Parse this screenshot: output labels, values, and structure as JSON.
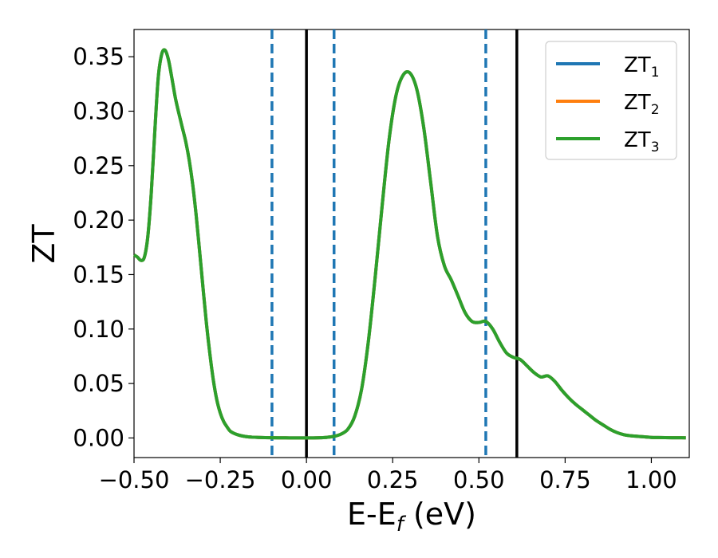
{
  "chart_data": {
    "type": "line",
    "title": "",
    "xlabel": "E-E",
    "xlabel_sub": "f",
    "xlabel_unit": " (eV)",
    "ylabel": "ZT",
    "xlim": [
      -0.5,
      1.11
    ],
    "ylim": [
      -0.018,
      0.375
    ],
    "xticks": [
      -0.5,
      -0.25,
      0.0,
      0.25,
      0.5,
      0.75,
      1.0
    ],
    "xtick_labels": [
      "−0.50",
      "−0.25",
      "0.00",
      "0.25",
      "0.50",
      "0.75",
      "1.00"
    ],
    "yticks": [
      0.0,
      0.05,
      0.1,
      0.15,
      0.2,
      0.25,
      0.3,
      0.35
    ],
    "ytick_labels": [
      "0.00",
      "0.05",
      "0.10",
      "0.15",
      "0.20",
      "0.25",
      "0.30",
      "0.35"
    ],
    "grid": false,
    "legend_position": "top-right",
    "series": [
      {
        "name": "ZT",
        "sub": "1",
        "color": "#1f77b4"
      },
      {
        "name": "ZT",
        "sub": "2",
        "color": "#ff7f0e"
      },
      {
        "name": "ZT",
        "sub": "3",
        "color": "#2ca02c"
      }
    ],
    "x": [
      -0.5,
      -0.49,
      -0.48,
      -0.47,
      -0.46,
      -0.45,
      -0.44,
      -0.43,
      -0.42,
      -0.41,
      -0.4,
      -0.39,
      -0.38,
      -0.37,
      -0.36,
      -0.35,
      -0.34,
      -0.33,
      -0.32,
      -0.31,
      -0.3,
      -0.29,
      -0.28,
      -0.27,
      -0.26,
      -0.25,
      -0.24,
      -0.23,
      -0.22,
      -0.2,
      -0.18,
      -0.16,
      -0.14,
      -0.12,
      -0.1,
      -0.08,
      -0.06,
      -0.04,
      -0.02,
      0.0,
      0.02,
      0.04,
      0.06,
      0.08,
      0.1,
      0.12,
      0.14,
      0.16,
      0.18,
      0.2,
      0.22,
      0.24,
      0.26,
      0.28,
      0.3,
      0.32,
      0.34,
      0.36,
      0.38,
      0.4,
      0.42,
      0.44,
      0.46,
      0.48,
      0.5,
      0.52,
      0.54,
      0.56,
      0.58,
      0.6,
      0.62,
      0.64,
      0.66,
      0.68,
      0.7,
      0.72,
      0.74,
      0.76,
      0.78,
      0.8,
      0.82,
      0.84,
      0.86,
      0.88,
      0.9,
      0.92,
      0.94,
      0.96,
      0.98,
      1.0,
      1.02,
      1.04,
      1.06,
      1.08,
      1.1
    ],
    "y": [
      0.168,
      0.166,
      0.163,
      0.166,
      0.185,
      0.225,
      0.28,
      0.33,
      0.352,
      0.356,
      0.347,
      0.33,
      0.312,
      0.298,
      0.285,
      0.272,
      0.255,
      0.233,
      0.205,
      0.172,
      0.138,
      0.105,
      0.077,
      0.053,
      0.035,
      0.023,
      0.015,
      0.01,
      0.006,
      0.003,
      0.0015,
      0.0008,
      0.0005,
      0.0003,
      0.0002,
      0.0001,
      0.0001,
      0.0,
      0.0,
      0.0,
      0.0,
      0.0002,
      0.0006,
      0.0015,
      0.0035,
      0.008,
      0.02,
      0.045,
      0.09,
      0.15,
      0.215,
      0.275,
      0.315,
      0.333,
      0.335,
      0.32,
      0.285,
      0.235,
      0.185,
      0.158,
      0.145,
      0.13,
      0.115,
      0.107,
      0.106,
      0.107,
      0.1,
      0.088,
      0.078,
      0.074,
      0.072,
      0.066,
      0.06,
      0.056,
      0.057,
      0.052,
      0.044,
      0.037,
      0.031,
      0.026,
      0.021,
      0.016,
      0.012,
      0.008,
      0.005,
      0.003,
      0.002,
      0.0015,
      0.001,
      0.0005,
      0.0004,
      0.0003,
      0.0002,
      0.0002,
      0.0001
    ],
    "vlines_dashed": {
      "x": [
        -0.1,
        0.08,
        0.52
      ],
      "color": "#1f77b4"
    },
    "vlines_solid": {
      "x": [
        0.0,
        0.61
      ],
      "color": "#000000"
    }
  }
}
